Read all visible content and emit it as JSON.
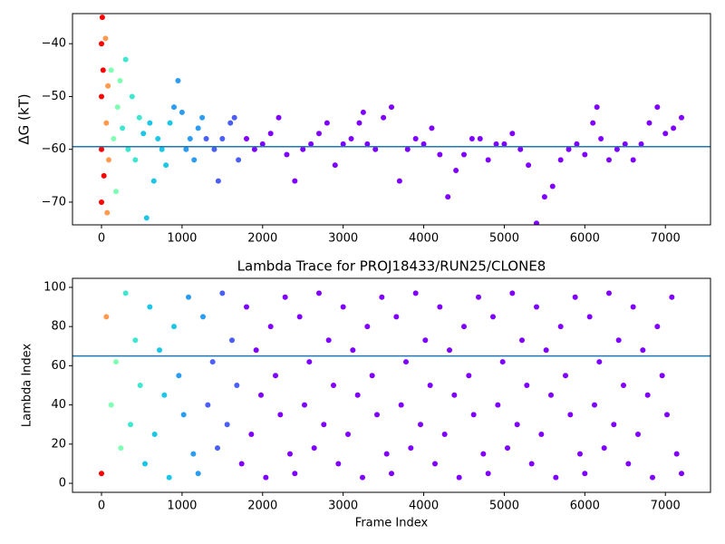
{
  "chart_data": [
    {
      "type": "scatter",
      "ylabel": "ΔG (kT)",
      "x": [
        0,
        0,
        0,
        0,
        10,
        20,
        30,
        50,
        60,
        70,
        80,
        90,
        120,
        150,
        180,
        200,
        230,
        260,
        300,
        330,
        380,
        420,
        470,
        520,
        560,
        600,
        650,
        700,
        750,
        800,
        850,
        900,
        950,
        1000,
        1050,
        1100,
        1150,
        1200,
        1250,
        1300,
        1400,
        1450,
        1500,
        1600,
        1650,
        1700,
        1800,
        1900,
        2000,
        2100,
        2200,
        2300,
        2400,
        2500,
        2600,
        2700,
        2800,
        2900,
        3000,
        3100,
        3200,
        3250,
        3300,
        3400,
        3500,
        3600,
        3700,
        3800,
        3900,
        4000,
        4100,
        4200,
        4300,
        4400,
        4500,
        4600,
        4700,
        4800,
        4900,
        5000,
        5100,
        5200,
        5300,
        5400,
        5500,
        5600,
        5700,
        5800,
        5900,
        6000,
        6100,
        6150,
        6200,
        6300,
        6400,
        6500,
        6600,
        6700,
        6800,
        6900,
        7000,
        7100,
        7200
      ],
      "values": [
        -40,
        -50,
        -60,
        -70,
        -35,
        -45,
        -65,
        -39,
        -55,
        -72,
        -48,
        -62,
        -45,
        -58,
        -68,
        -52,
        -47,
        -56,
        -43,
        -60,
        -50,
        -62,
        -54,
        -57,
        -73,
        -55,
        -66,
        -58,
        -60,
        -63,
        -55,
        -52,
        -47,
        -53,
        -60,
        -58,
        -62,
        -56,
        -54,
        -58,
        -60,
        -66,
        -58,
        -55,
        -54,
        -62,
        -58,
        -60,
        -59,
        -57,
        -54,
        -61,
        -66,
        -60,
        -59,
        -57,
        -55,
        -63,
        -59,
        -58,
        -55,
        -53,
        -59,
        -60,
        -54,
        -52,
        -66,
        -60,
        -58,
        -59,
        -56,
        -61,
        -69,
        -64,
        -61,
        -58,
        -58,
        -62,
        -59,
        -59,
        -57,
        -60,
        -63,
        -74,
        -69,
        -67,
        -62,
        -60,
        -59,
        -61,
        -55,
        -52,
        -58,
        -62,
        -60,
        -59,
        -62,
        -59,
        -55,
        -52,
        -57,
        -56,
        -54
      ],
      "colors": [
        "#ff0000",
        "#ff0000",
        "#ff0000",
        "#ff0000",
        "#ff0000",
        "#ff0000",
        "#ff0000",
        "#ff9a4f",
        "#ff9a4f",
        "#ff9a4f",
        "#ff9a4f",
        "#ff9a4f",
        "#80ffb4",
        "#80ffb4",
        "#80ffb4",
        "#80ffb4",
        "#80ffb4",
        "#40e6d0",
        "#40e6d0",
        "#40e6d0",
        "#40e6d0",
        "#40e6d0",
        "#40e6d0",
        "#1cc6e6",
        "#1cc6e6",
        "#1cc6e6",
        "#1cc6e6",
        "#1cc6e6",
        "#1cc6e6",
        "#1cc6e6",
        "#1cc6e6",
        "#2c9cf2",
        "#2c9cf2",
        "#2c9cf2",
        "#2c9cf2",
        "#2c9cf2",
        "#2c9cf2",
        "#2c9cf2",
        "#2c9cf2",
        "#4b5ef5",
        "#4b5ef5",
        "#4b5ef5",
        "#4b5ef5",
        "#4b5ef5",
        "#4b5ef5",
        "#4b5ef5",
        "#8000ff",
        "#8000ff",
        "#8000ff",
        "#8000ff",
        "#8000ff",
        "#8000ff",
        "#8000ff",
        "#8000ff",
        "#8000ff",
        "#8000ff",
        "#8000ff",
        "#8000ff",
        "#8000ff",
        "#8000ff",
        "#8000ff",
        "#8000ff",
        "#8000ff",
        "#8000ff",
        "#8000ff",
        "#8000ff",
        "#8000ff",
        "#8000ff",
        "#8000ff",
        "#8000ff",
        "#8000ff",
        "#8000ff",
        "#8000ff",
        "#8000ff",
        "#8000ff",
        "#8000ff",
        "#8000ff",
        "#8000ff",
        "#8000ff",
        "#8000ff",
        "#8000ff",
        "#8000ff",
        "#8000ff",
        "#8000ff",
        "#8000ff",
        "#8000ff",
        "#8000ff",
        "#8000ff",
        "#8000ff",
        "#8000ff",
        "#8000ff",
        "#8000ff",
        "#8000ff",
        "#8000ff",
        "#8000ff",
        "#8000ff",
        "#8000ff",
        "#8000ff",
        "#8000ff",
        "#8000ff",
        "#8000ff",
        "#8000ff",
        "#8000ff"
      ],
      "hline": -59.5,
      "hline_color": "#1f77b4",
      "xlim": [
        -360,
        7560
      ],
      "xticks": [
        0,
        1000,
        2000,
        3000,
        4000,
        5000,
        6000,
        7000
      ],
      "ylim": [
        -74.3,
        -34.3
      ],
      "yticks": [
        {
          "value": -70,
          "label": "−70"
        },
        {
          "value": -60,
          "label": "−60"
        },
        {
          "value": -50,
          "label": "−50"
        },
        {
          "value": -40,
          "label": "−40"
        }
      ]
    },
    {
      "type": "scatter",
      "title": "Lambda Trace for PROJ18433/RUN25/CLONE8",
      "xlabel": "Frame Index",
      "ylabel": "Lambda Index",
      "x": [
        0,
        60,
        120,
        180,
        240,
        300,
        360,
        420,
        480,
        540,
        600,
        660,
        720,
        780,
        840,
        900,
        960,
        1020,
        1080,
        1140,
        1200,
        1260,
        1320,
        1380,
        1440,
        1500,
        1560,
        1620,
        1680,
        1740,
        1800,
        1860,
        1920,
        1980,
        2040,
        2100,
        2160,
        2220,
        2280,
        2340,
        2400,
        2460,
        2520,
        2580,
        2640,
        2700,
        2760,
        2820,
        2880,
        2940,
        3000,
        3060,
        3120,
        3180,
        3240,
        3300,
        3360,
        3420,
        3480,
        3540,
        3600,
        3660,
        3720,
        3780,
        3840,
        3900,
        3960,
        4020,
        4080,
        4140,
        4200,
        4260,
        4320,
        4380,
        4440,
        4500,
        4560,
        4620,
        4680,
        4740,
        4800,
        4860,
        4920,
        4980,
        5040,
        5100,
        5160,
        5220,
        5280,
        5340,
        5400,
        5460,
        5520,
        5580,
        5640,
        5700,
        5760,
        5820,
        5880,
        5940,
        6000,
        6060,
        6120,
        6180,
        6240,
        6300,
        6360,
        6420,
        6480,
        6540,
        6600,
        6660,
        6720,
        6780,
        6840,
        6900,
        6960,
        7020,
        7080,
        7140,
        7200
      ],
      "values": [
        5,
        85,
        40,
        62,
        18,
        97,
        30,
        73,
        50,
        10,
        90,
        25,
        68,
        45,
        3,
        80,
        55,
        35,
        95,
        15,
        5,
        85,
        40,
        62,
        18,
        97,
        30,
        73,
        50,
        10,
        90,
        25,
        68,
        45,
        3,
        80,
        55,
        35,
        95,
        15,
        5,
        85,
        40,
        62,
        18,
        97,
        30,
        73,
        50,
        10,
        90,
        25,
        68,
        45,
        3,
        80,
        55,
        35,
        95,
        15,
        5,
        85,
        40,
        62,
        18,
        97,
        30,
        73,
        50,
        10,
        90,
        25,
        68,
        45,
        3,
        80,
        55,
        35,
        95,
        15,
        5,
        85,
        40,
        62,
        18,
        97,
        30,
        73,
        50,
        10,
        90,
        25,
        68,
        45,
        3,
        80,
        55,
        35,
        95,
        15,
        5,
        85,
        40,
        62,
        18,
        97,
        30,
        73,
        50,
        10,
        90,
        25,
        68,
        45,
        3,
        80,
        55,
        35,
        95,
        15,
        5
      ],
      "colors": [
        "#ff0000",
        "#ff9a4f",
        "#80ffb4",
        "#80ffb4",
        "#80ffb4",
        "#40e6d0",
        "#40e6d0",
        "#40e6d0",
        "#40e6d0",
        "#1cc6e6",
        "#1cc6e6",
        "#1cc6e6",
        "#1cc6e6",
        "#1cc6e6",
        "#1cc6e6",
        "#1cc6e6",
        "#2c9cf2",
        "#2c9cf2",
        "#2c9cf2",
        "#2c9cf2",
        "#2c9cf2",
        "#2c9cf2",
        "#4b5ef5",
        "#4b5ef5",
        "#4b5ef5",
        "#4b5ef5",
        "#4b5ef5",
        "#4b5ef5",
        "#4b5ef5",
        "#8000ff",
        "#8000ff",
        "#8000ff",
        "#8000ff",
        "#8000ff",
        "#8000ff",
        "#8000ff",
        "#8000ff",
        "#8000ff",
        "#8000ff",
        "#8000ff",
        "#8000ff",
        "#8000ff",
        "#8000ff",
        "#8000ff",
        "#8000ff",
        "#8000ff",
        "#8000ff",
        "#8000ff",
        "#8000ff",
        "#8000ff",
        "#8000ff",
        "#8000ff",
        "#8000ff",
        "#8000ff",
        "#8000ff",
        "#8000ff",
        "#8000ff",
        "#8000ff",
        "#8000ff",
        "#8000ff",
        "#8000ff",
        "#8000ff",
        "#8000ff",
        "#8000ff",
        "#8000ff",
        "#8000ff",
        "#8000ff",
        "#8000ff",
        "#8000ff",
        "#8000ff",
        "#8000ff",
        "#8000ff",
        "#8000ff",
        "#8000ff",
        "#8000ff",
        "#8000ff",
        "#8000ff",
        "#8000ff",
        "#8000ff",
        "#8000ff",
        "#8000ff",
        "#8000ff",
        "#8000ff",
        "#8000ff",
        "#8000ff",
        "#8000ff",
        "#8000ff",
        "#8000ff",
        "#8000ff",
        "#8000ff",
        "#8000ff",
        "#8000ff",
        "#8000ff",
        "#8000ff",
        "#8000ff",
        "#8000ff",
        "#8000ff",
        "#8000ff",
        "#8000ff",
        "#8000ff",
        "#8000ff",
        "#8000ff",
        "#8000ff",
        "#8000ff",
        "#8000ff",
        "#8000ff",
        "#8000ff",
        "#8000ff",
        "#8000ff",
        "#8000ff",
        "#8000ff",
        "#8000ff",
        "#8000ff",
        "#8000ff",
        "#8000ff",
        "#8000ff",
        "#8000ff",
        "#8000ff",
        "#8000ff",
        "#8000ff",
        "#8000ff"
      ],
      "hline": 65,
      "hline_color": "#1f77b4",
      "xlim": [
        -360,
        7560
      ],
      "xticks": [
        0,
        1000,
        2000,
        3000,
        4000,
        5000,
        6000,
        7000
      ],
      "ylim": [
        -4.6,
        104.6
      ],
      "yticks": [
        0,
        20,
        40,
        60,
        80,
        100
      ]
    }
  ]
}
